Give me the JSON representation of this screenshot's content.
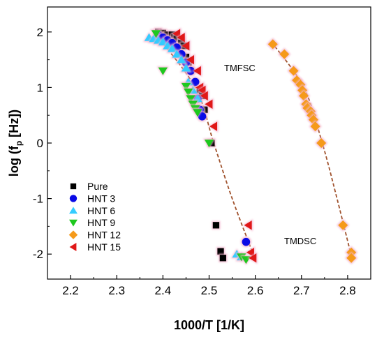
{
  "chart_data": {
    "type": "scatter",
    "title": "",
    "xlabel": "1000/T [1/K]",
    "ylabel_main": "log (f",
    "ylabel_sub": "p",
    "ylabel_tail": " [Hz])",
    "xlim": [
      2.15,
      2.85
    ],
    "ylim": [
      -2.45,
      2.45
    ],
    "xticks": [
      2.2,
      2.3,
      2.4,
      2.5,
      2.6,
      2.7,
      2.8
    ],
    "xtick_labels": [
      "2.2",
      "2.3",
      "2.4",
      "2.5",
      "2.6",
      "2.7",
      "2.8"
    ],
    "yticks": [
      -2,
      -1,
      0,
      1,
      2
    ],
    "ytick_labels": [
      "-2",
      "-1",
      "0",
      "1",
      "2"
    ],
    "grid": false,
    "legend_position": "bottom-left",
    "annotations": [
      {
        "text": "TMFSC",
        "x": 2.555,
        "y": 1.35
      },
      {
        "text": "TMDSC",
        "x": 2.615,
        "y": -1.7
      }
    ],
    "series": [
      {
        "name": "Pure",
        "marker": "square",
        "color": "#000000",
        "points": [
          [
            2.39,
            2.0
          ],
          [
            2.4,
            1.98
          ],
          [
            2.41,
            1.95
          ],
          [
            2.42,
            1.95
          ],
          [
            2.425,
            1.9
          ],
          [
            2.43,
            1.88
          ],
          [
            2.44,
            1.85
          ],
          [
            2.44,
            1.8
          ],
          [
            2.445,
            1.75
          ],
          [
            2.45,
            1.55
          ],
          [
            2.455,
            1.45
          ],
          [
            2.46,
            1.3
          ],
          [
            2.48,
            0.95
          ],
          [
            2.485,
            0.85
          ],
          [
            2.49,
            0.6
          ],
          [
            2.505,
            0.0
          ],
          [
            2.515,
            -1.48
          ],
          [
            2.525,
            -1.95
          ],
          [
            2.53,
            -2.07
          ]
        ]
      },
      {
        "name": "HNT 3",
        "marker": "circle",
        "color": "#0a0ae6",
        "points": [
          [
            2.39,
            1.95
          ],
          [
            2.4,
            1.9
          ],
          [
            2.41,
            1.85
          ],
          [
            2.42,
            1.8
          ],
          [
            2.43,
            1.72
          ],
          [
            2.44,
            1.6
          ],
          [
            2.45,
            1.45
          ],
          [
            2.46,
            1.3
          ],
          [
            2.47,
            1.1
          ],
          [
            2.475,
            0.8
          ],
          [
            2.48,
            0.6
          ],
          [
            2.485,
            0.48
          ],
          [
            2.58,
            -1.78
          ]
        ]
      },
      {
        "name": "HNT 6",
        "marker": "triangle-up",
        "color": "#33ccff",
        "points": [
          [
            2.37,
            1.9
          ],
          [
            2.38,
            1.88
          ],
          [
            2.39,
            1.85
          ],
          [
            2.4,
            1.82
          ],
          [
            2.41,
            1.75
          ],
          [
            2.42,
            1.7
          ],
          [
            2.43,
            1.6
          ],
          [
            2.44,
            1.5
          ],
          [
            2.45,
            1.35
          ],
          [
            2.455,
            1.1
          ],
          [
            2.465,
            0.95
          ],
          [
            2.475,
            0.8
          ],
          [
            2.56,
            -2.0
          ],
          [
            2.57,
            -2.05
          ]
        ]
      },
      {
        "name": "HNT 9",
        "marker": "triangle-down",
        "color": "#1ec81e",
        "points": [
          [
            2.385,
            1.97
          ],
          [
            2.4,
            1.3
          ],
          [
            2.45,
            1.02
          ],
          [
            2.455,
            0.92
          ],
          [
            2.46,
            0.8
          ],
          [
            2.465,
            0.7
          ],
          [
            2.47,
            0.62
          ],
          [
            2.475,
            0.55
          ],
          [
            2.5,
            0.0
          ],
          [
            2.57,
            -2.05
          ],
          [
            2.58,
            -2.1
          ]
        ]
      },
      {
        "name": "HNT 12",
        "marker": "diamond",
        "color": "#f59a1a",
        "points": [
          [
            2.638,
            1.78
          ],
          [
            2.663,
            1.6
          ],
          [
            2.683,
            1.3
          ],
          [
            2.69,
            1.13
          ],
          [
            2.698,
            1.05
          ],
          [
            2.702,
            0.95
          ],
          [
            2.705,
            0.85
          ],
          [
            2.71,
            0.7
          ],
          [
            2.713,
            0.63
          ],
          [
            2.72,
            0.57
          ],
          [
            2.722,
            0.5
          ],
          [
            2.726,
            0.42
          ],
          [
            2.73,
            0.3
          ],
          [
            2.743,
            0.0
          ],
          [
            2.79,
            -1.48
          ],
          [
            2.808,
            -1.97
          ],
          [
            2.808,
            -2.07
          ]
        ]
      },
      {
        "name": "HNT 15",
        "marker": "triangle-left",
        "color": "#e01818",
        "points": [
          [
            2.43,
            1.97
          ],
          [
            2.44,
            1.9
          ],
          [
            2.45,
            1.75
          ],
          [
            2.46,
            1.5
          ],
          [
            2.475,
            1.3
          ],
          [
            2.48,
            1.0
          ],
          [
            2.485,
            0.95
          ],
          [
            2.49,
            0.85
          ],
          [
            2.5,
            0.7
          ],
          [
            2.51,
            0.3
          ],
          [
            2.585,
            -1.48
          ],
          [
            2.59,
            -1.97
          ],
          [
            2.595,
            -2.07
          ]
        ]
      }
    ],
    "fits": [
      {
        "color": "#a0522d",
        "points": [
          [
            2.38,
            2.0
          ],
          [
            2.47,
            1.0
          ],
          [
            2.51,
            0.0
          ],
          [
            2.55,
            -1.0
          ],
          [
            2.6,
            -2.1
          ]
        ]
      },
      {
        "color": "#a0522d",
        "points": [
          [
            2.635,
            1.82
          ],
          [
            2.705,
            1.0
          ],
          [
            2.745,
            0.0
          ],
          [
            2.777,
            -1.0
          ],
          [
            2.81,
            -2.1
          ]
        ]
      }
    ]
  }
}
